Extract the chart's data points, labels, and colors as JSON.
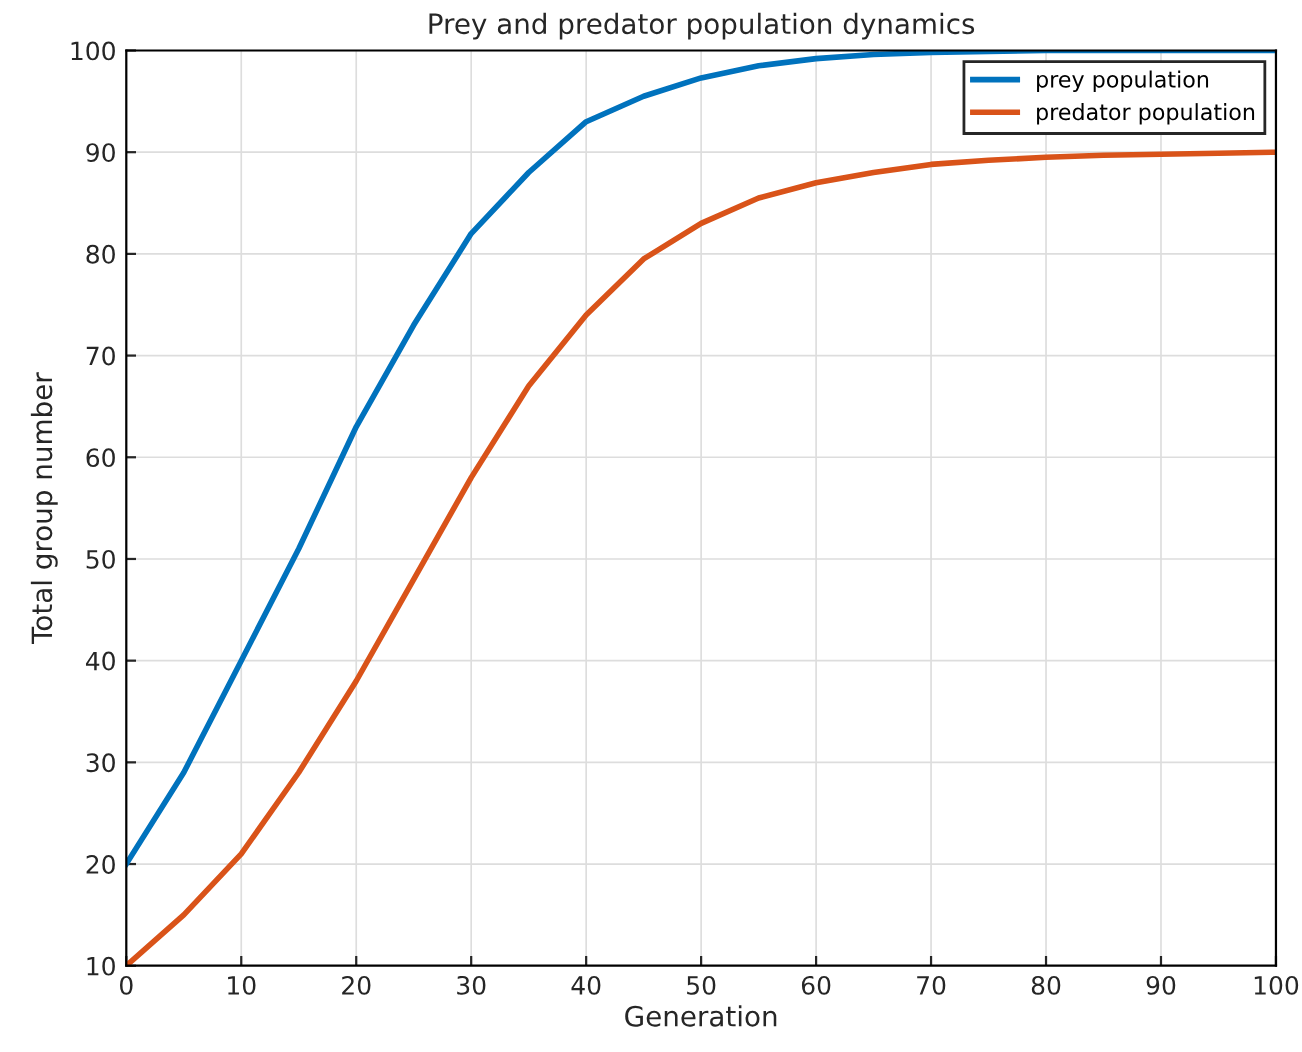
{
  "chart_data": {
    "type": "line",
    "title": "Prey and predator population dynamics",
    "xlabel": "Generation",
    "ylabel": "Total group number",
    "x": [
      0,
      5,
      10,
      15,
      20,
      25,
      30,
      35,
      40,
      45,
      50,
      55,
      60,
      65,
      70,
      75,
      80,
      85,
      90,
      95,
      100
    ],
    "series": [
      {
        "name": "prey population",
        "color": "#0072bd",
        "values": [
          20,
          29,
          40,
          51,
          63,
          73,
          82,
          88,
          93,
          95.5,
          97.3,
          98.5,
          99.2,
          99.6,
          99.8,
          99.9,
          100,
          100,
          100,
          100,
          100
        ]
      },
      {
        "name": "predator population",
        "color": "#d95319",
        "values": [
          10,
          15,
          21,
          29,
          38,
          48,
          58,
          67,
          74,
          79.5,
          83,
          85.5,
          87,
          88,
          88.8,
          89.2,
          89.5,
          89.7,
          89.8,
          89.9,
          90
        ]
      }
    ],
    "xlim": [
      0,
      100
    ],
    "ylim": [
      10,
      100
    ],
    "xticks": [
      0,
      10,
      20,
      30,
      40,
      50,
      60,
      70,
      80,
      90,
      100
    ],
    "yticks": [
      10,
      20,
      30,
      40,
      50,
      60,
      70,
      80,
      90,
      100
    ],
    "grid": true,
    "legend": "top right",
    "marker": "none",
    "line_style": "solid"
  }
}
